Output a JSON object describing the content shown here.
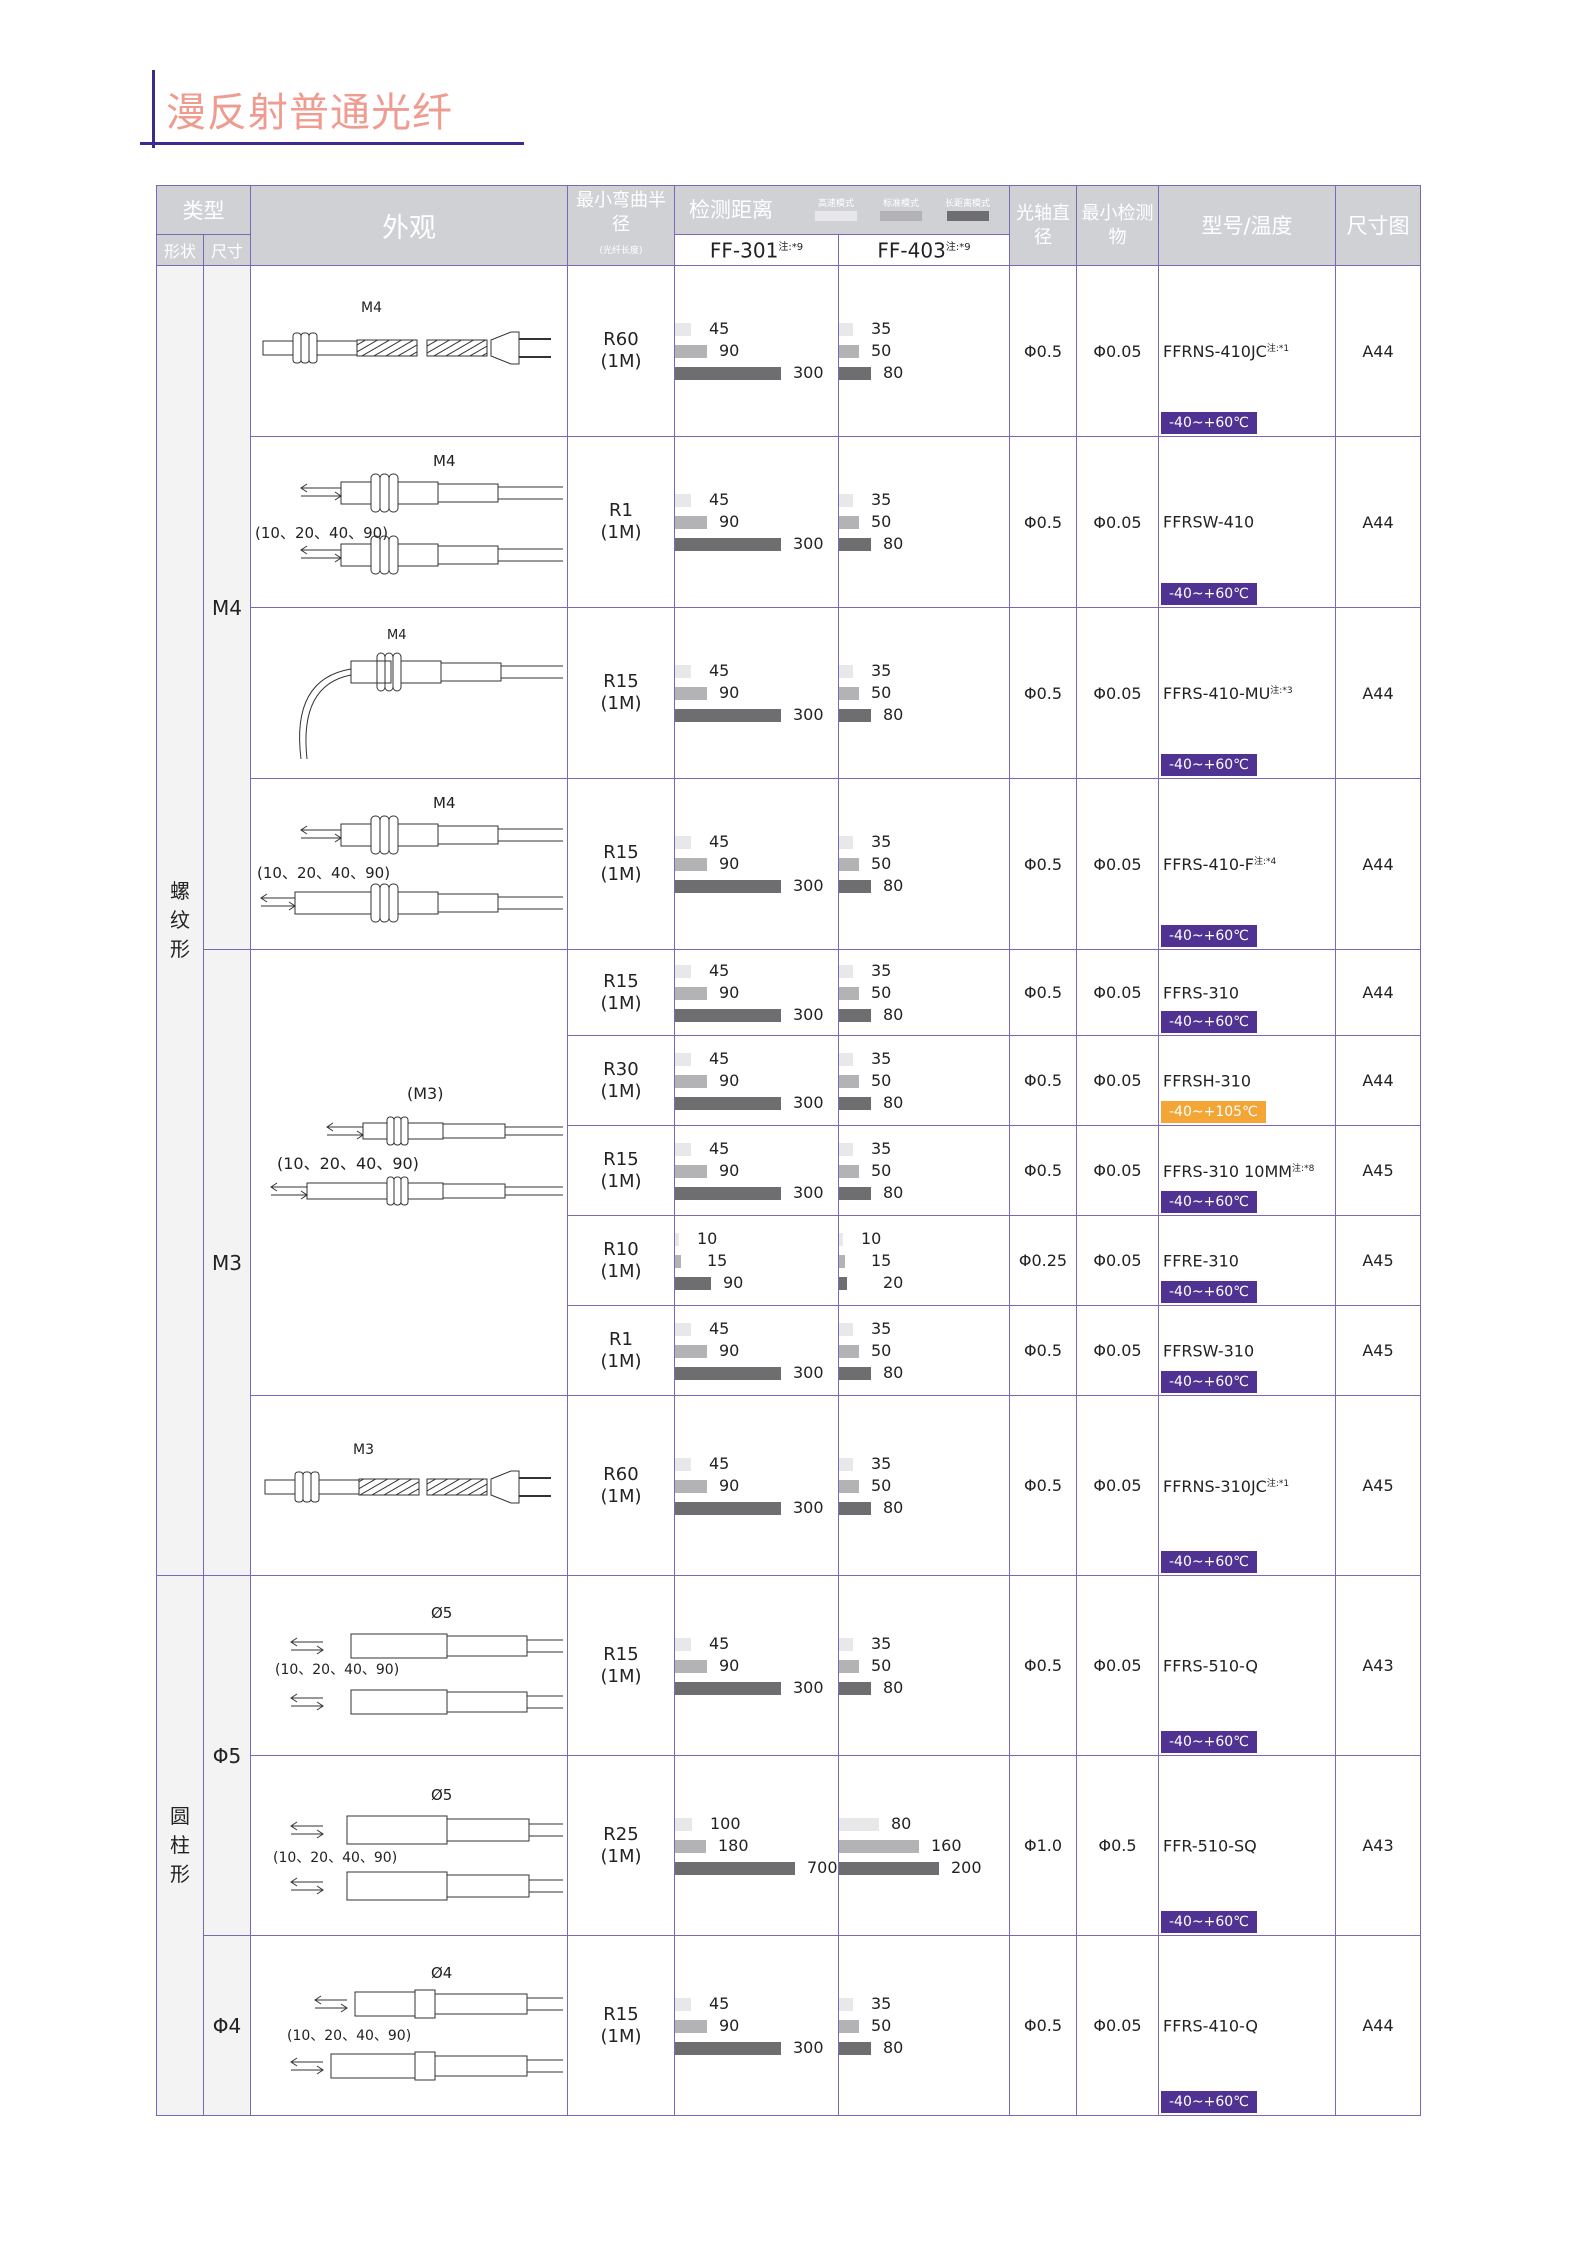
{
  "page": {
    "title": "漫反射普通光纤"
  },
  "header": {
    "type": "类型",
    "shape": "形状",
    "size": "尺寸",
    "appearance": "外观",
    "bend_radius": "最小弯曲半径",
    "bend_note": "(光纤长度)",
    "distance": "检测距离",
    "legend": [
      "高速模式",
      "标准模式",
      "长距离模式"
    ],
    "fiber1": "FF-301",
    "fiber1_note": "注:*9",
    "fiber2": "FF-403",
    "fiber2_note": "注:*9",
    "axis": "光轴直径",
    "min_obj": "最小检测物",
    "model": "型号/温度",
    "dim": "尺寸图"
  },
  "groups": [
    {
      "shape": [
        "螺",
        "纹",
        "形"
      ]
    },
    {
      "shape": [
        "圆",
        "柱",
        "形"
      ]
    }
  ],
  "sizes": [
    "M4",
    "M3",
    "Φ5",
    "Φ4"
  ],
  "pictures": {
    "p1": "M4",
    "p2": "M4",
    "p2_range": "(10、20、40、90)",
    "p3": "M4",
    "p4": "M4",
    "p4_range": "(10、20、40、90)",
    "p5": "(M3)",
    "p5_range": "(10、20、40、90)",
    "p6": "M3",
    "p7": "Ø5",
    "p7_range": "(10、20、40、90)",
    "p8": "Ø5",
    "p8_range": "(10、20、40、90)",
    "p9": "Ø4",
    "p9_range": "(10、20、40、90)"
  },
  "rows": [
    {
      "bend": "R60",
      "len": "(1M)",
      "d1": [
        "45",
        "90",
        "300"
      ],
      "d2": [
        "35",
        "50",
        "80"
      ],
      "axis": "Φ0.5",
      "min": "Φ0.05",
      "model": "FFRNS-410JC",
      "note": "注:*1",
      "temp": "-40~+60℃",
      "dim": "A44"
    },
    {
      "bend": "R1",
      "len": "(1M)",
      "d1": [
        "45",
        "90",
        "300"
      ],
      "d2": [
        "35",
        "50",
        "80"
      ],
      "axis": "Φ0.5",
      "min": "Φ0.05",
      "model": "FFRSW-410",
      "note": "",
      "temp": "-40~+60℃",
      "dim": "A44"
    },
    {
      "bend": "R15",
      "len": "(1M)",
      "d1": [
        "45",
        "90",
        "300"
      ],
      "d2": [
        "35",
        "50",
        "80"
      ],
      "axis": "Φ0.5",
      "min": "Φ0.05",
      "model": "FFRS-410-MU",
      "note": "注:*3",
      "temp": "-40~+60℃",
      "dim": "A44"
    },
    {
      "bend": "R15",
      "len": "(1M)",
      "d1": [
        "45",
        "90",
        "300"
      ],
      "d2": [
        "35",
        "50",
        "80"
      ],
      "axis": "Φ0.5",
      "min": "Φ0.05",
      "model": "FFRS-410-F",
      "note": "注:*4",
      "temp": "-40~+60℃",
      "dim": "A44"
    },
    {
      "bend": "R15",
      "len": "(1M)",
      "d1": [
        "45",
        "90",
        "300"
      ],
      "d2": [
        "35",
        "50",
        "80"
      ],
      "axis": "Φ0.5",
      "min": "Φ0.05",
      "model": "FFRS-310",
      "note": "",
      "temp": "-40~+60℃",
      "dim": "A44"
    },
    {
      "bend": "R30",
      "len": "(1M)",
      "d1": [
        "45",
        "90",
        "300"
      ],
      "d2": [
        "35",
        "50",
        "80"
      ],
      "axis": "Φ0.5",
      "min": "Φ0.05",
      "model": "FFRSH-310",
      "note": "",
      "temp": "-40~+105℃",
      "dim": "A44"
    },
    {
      "bend": "R15",
      "len": "(1M)",
      "d1": [
        "45",
        "90",
        "300"
      ],
      "d2": [
        "35",
        "50",
        "80"
      ],
      "axis": "Φ0.5",
      "min": "Φ0.05",
      "model": "FFRS-310 10MM",
      "note": "注:*8",
      "temp": "-40~+60℃",
      "dim": "A45"
    },
    {
      "bend": "R10",
      "len": "(1M)",
      "d1": [
        "10",
        "15",
        "90"
      ],
      "d2": [
        "10",
        "15",
        "20"
      ],
      "axis": "Φ0.25",
      "min": "Φ0.05",
      "model": "FFRE-310",
      "note": "",
      "temp": "-40~+60℃",
      "dim": "A45"
    },
    {
      "bend": "R1",
      "len": "(1M)",
      "d1": [
        "45",
        "90",
        "300"
      ],
      "d2": [
        "35",
        "50",
        "80"
      ],
      "axis": "Φ0.5",
      "min": "Φ0.05",
      "model": "FFRSW-310",
      "note": "",
      "temp": "-40~+60℃",
      "dim": "A45"
    },
    {
      "bend": "R60",
      "len": "(1M)",
      "d1": [
        "45",
        "90",
        "300"
      ],
      "d2": [
        "35",
        "50",
        "80"
      ],
      "axis": "Φ0.5",
      "min": "Φ0.05",
      "model": "FFRNS-310JC",
      "note": "注:*1",
      "temp": "-40~+60℃",
      "dim": "A45"
    },
    {
      "bend": "R15",
      "len": "(1M)",
      "d1": [
        "45",
        "90",
        "300"
      ],
      "d2": [
        "35",
        "50",
        "80"
      ],
      "axis": "Φ0.5",
      "min": "Φ0.05",
      "model": "FFRS-510-Q",
      "note": "",
      "temp": "-40~+60℃",
      "dim": "A43"
    },
    {
      "bend": "R25",
      "len": "(1M)",
      "d1": [
        "100",
        "180",
        "700"
      ],
      "d2": [
        "80",
        "160",
        "200"
      ],
      "axis": "Φ1.0",
      "min": "Φ0.5",
      "model": "FFR-510-SQ",
      "note": "",
      "temp": "-40~+60℃",
      "dim": "A43"
    },
    {
      "bend": "R15",
      "len": "(1M)",
      "d1": [
        "45",
        "90",
        "300"
      ],
      "d2": [
        "35",
        "50",
        "80"
      ],
      "axis": "Φ0.5",
      "min": "Φ0.05",
      "model": "FFRS-410-Q",
      "note": "",
      "temp": "-40~+60℃",
      "dim": "A44"
    }
  ],
  "colors": {
    "border": "#7b67b4",
    "header_bg": "#cfd1d4",
    "temp_bg": "#4f3291",
    "temp_hot_bg": "#f3a536",
    "title": "#ef9b8f",
    "title_rule": "#3d2a8f"
  }
}
